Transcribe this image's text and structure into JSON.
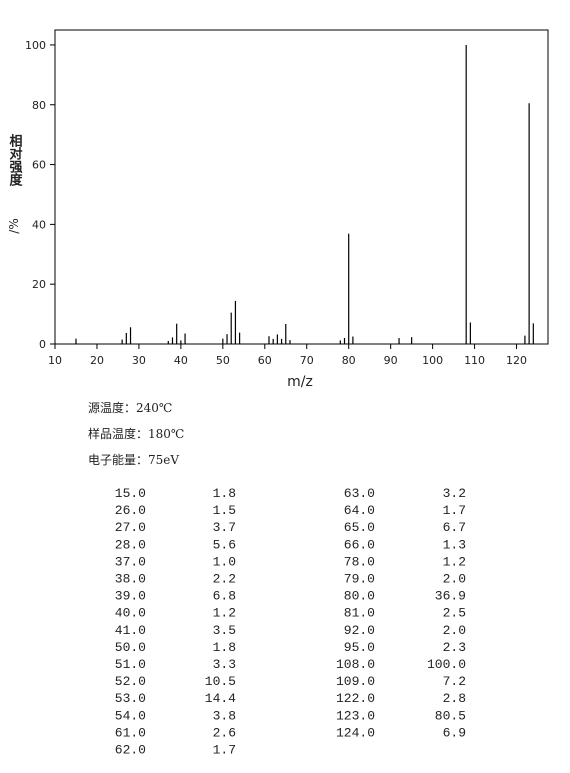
{
  "chart_data": {
    "type": "bar",
    "xlabel": "m/z",
    "ylabel": "相对强度",
    "ylabel_unit": "/%",
    "color": "#000000",
    "x": [
      15,
      26,
      27,
      28,
      37,
      38,
      39,
      40,
      41,
      50,
      51,
      52,
      53,
      54,
      61,
      62,
      63,
      64,
      65,
      66,
      78,
      79,
      80,
      81,
      92,
      95,
      108,
      109,
      122,
      123,
      124
    ],
    "values": [
      1.8,
      1.5,
      3.7,
      5.6,
      1.0,
      2.2,
      6.8,
      1.2,
      3.5,
      1.8,
      3.3,
      10.5,
      14.4,
      3.8,
      2.6,
      1.7,
      3.2,
      1.7,
      6.7,
      1.3,
      1.2,
      2.0,
      36.9,
      2.5,
      2.0,
      2.3,
      100.0,
      7.2,
      2.8,
      80.5,
      6.9
    ],
    "xlim": [
      10,
      127.5
    ],
    "xticks": [
      10,
      20,
      30,
      40,
      50,
      60,
      70,
      80,
      90,
      100,
      110,
      120
    ],
    "ylim": [
      0,
      105
    ],
    "yticks": [
      0,
      20,
      40,
      60,
      80,
      100
    ]
  },
  "notes": [
    "源温度：240℃",
    "样品温度：180℃",
    "电子能量：75eV"
  ],
  "table": {
    "left": [
      [
        "15.0",
        "1.8"
      ],
      [
        "26.0",
        "1.5"
      ],
      [
        "27.0",
        "3.7"
      ],
      [
        "28.0",
        "5.6"
      ],
      [
        "37.0",
        "1.0"
      ],
      [
        "38.0",
        "2.2"
      ],
      [
        "39.0",
        "6.8"
      ],
      [
        "40.0",
        "1.2"
      ],
      [
        "41.0",
        "3.5"
      ],
      [
        "50.0",
        "1.8"
      ],
      [
        "51.0",
        "3.3"
      ],
      [
        "52.0",
        "10.5"
      ],
      [
        "53.0",
        "14.4"
      ],
      [
        "54.0",
        "3.8"
      ],
      [
        "61.0",
        "2.6"
      ],
      [
        "62.0",
        "1.7"
      ]
    ],
    "right": [
      [
        "63.0",
        "3.2"
      ],
      [
        "64.0",
        "1.7"
      ],
      [
        "65.0",
        "6.7"
      ],
      [
        "66.0",
        "1.3"
      ],
      [
        "78.0",
        "1.2"
      ],
      [
        "79.0",
        "2.0"
      ],
      [
        "80.0",
        "36.9"
      ],
      [
        "81.0",
        "2.5"
      ],
      [
        "92.0",
        "2.0"
      ],
      [
        "95.0",
        "2.3"
      ],
      [
        "108.0",
        "100.0"
      ],
      [
        "109.0",
        "7.2"
      ],
      [
        "122.0",
        "2.8"
      ],
      [
        "123.0",
        "80.5"
      ],
      [
        "124.0",
        "6.9"
      ]
    ]
  }
}
